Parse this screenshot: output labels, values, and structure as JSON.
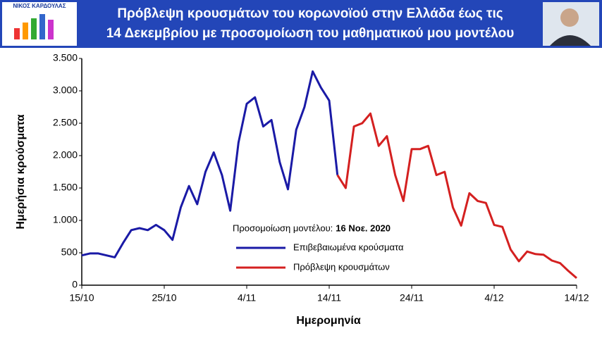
{
  "header": {
    "logo": "ΝΙΚΟΣ ΚΑΡΔΟΥΛΑΣ",
    "title_line1": "Πρόβλεψη κρουσμάτων του κορωνοϊού στην Ελλάδα έως τις",
    "title_line2": "14 Δεκεμβρίου με προσομοίωση του μαθηματικού μου μοντέλου"
  },
  "chart_data": {
    "type": "line",
    "x_label": "Ημερομηνία",
    "y_label": "Ημερήσια κρούσματα",
    "legend_title": "Προσομοίωση μοντέλου:",
    "legend_date": "16 Νοε. 2020",
    "categories": [
      "15/10",
      null,
      null,
      null,
      null,
      null,
      null,
      null,
      null,
      null,
      "25/10",
      null,
      null,
      null,
      null,
      null,
      null,
      null,
      null,
      null,
      "4/11",
      null,
      null,
      null,
      null,
      null,
      null,
      null,
      null,
      null,
      "14/11",
      null,
      null,
      null,
      null,
      null,
      null,
      null,
      null,
      null,
      "24/11",
      null,
      null,
      null,
      null,
      null,
      null,
      null,
      null,
      null,
      "4/12",
      null,
      null,
      null,
      null,
      null,
      null,
      null,
      null,
      null,
      "14/12"
    ],
    "series": [
      {
        "name": "Επιβεβαιωμένα κρούσματα",
        "color": "#1a1aa6",
        "values": [
          460,
          490,
          490,
          460,
          430,
          650,
          850,
          880,
          850,
          930,
          850,
          700,
          1200,
          1530,
          1250,
          1750,
          2050,
          1700,
          1150,
          2200,
          2800,
          2900,
          2450,
          2550,
          1900,
          1480,
          2400,
          2750,
          3300,
          3050,
          2850,
          1700,
          null,
          null,
          null,
          null,
          null,
          null,
          null,
          null,
          null,
          null,
          null,
          null,
          null,
          null,
          null,
          null,
          null,
          null,
          null,
          null,
          null,
          null,
          null,
          null,
          null,
          null,
          null,
          null,
          null
        ]
      },
      {
        "name": "Πρόβλεψη κρουσμάτων",
        "color": "#d42020",
        "values": [
          null,
          null,
          null,
          null,
          null,
          null,
          null,
          null,
          null,
          null,
          null,
          null,
          null,
          null,
          null,
          null,
          null,
          null,
          null,
          null,
          null,
          null,
          null,
          null,
          null,
          null,
          null,
          null,
          null,
          null,
          null,
          1700,
          1500,
          2450,
          2500,
          2650,
          2150,
          2300,
          1700,
          1300,
          2100,
          2100,
          2150,
          1700,
          1750,
          1200,
          920,
          1420,
          1300,
          1270,
          930,
          900,
          550,
          370,
          520,
          480,
          470,
          380,
          340,
          220,
          110
        ]
      }
    ],
    "ylim": [
      0,
      3500
    ],
    "yticks": [
      0,
      500,
      {
        "value": 1000,
        "label": "1.000"
      },
      {
        "value": 1500,
        "label": "1.500"
      },
      {
        "value": 2000,
        "label": "2.000"
      },
      {
        "value": 2500,
        "label": "2.500"
      },
      {
        "value": 3000,
        "label": "3.000"
      },
      {
        "value": 3500,
        "label": "3.500"
      }
    ],
    "grid": false
  }
}
